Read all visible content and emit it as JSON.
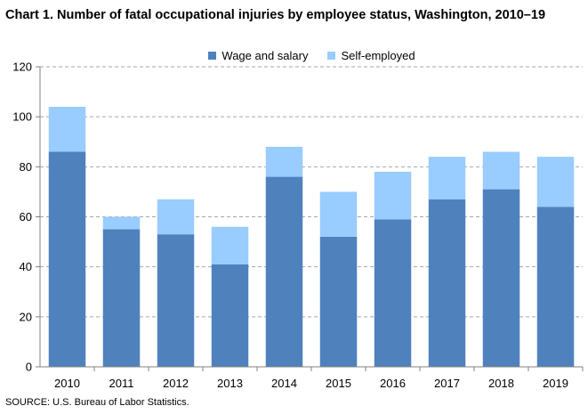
{
  "title": "Chart 1. Number of fatal occupational injuries by employee status, Washington, 2010–19",
  "source": "SOURCE: U.S. Bureau of Labor Statistics.",
  "colors": {
    "wage": "#4f81bd",
    "self": "#99ccff",
    "grid": "#a6a6a6",
    "axis": "#808080"
  },
  "chart_data": {
    "type": "bar",
    "stacked": true,
    "categories": [
      "2010",
      "2011",
      "2012",
      "2013",
      "2014",
      "2015",
      "2016",
      "2017",
      "2018",
      "2019"
    ],
    "series": [
      {
        "name": "Wage and salary",
        "values": [
          86,
          55,
          53,
          41,
          76,
          52,
          59,
          67,
          71,
          64
        ]
      },
      {
        "name": "Self-employed",
        "values": [
          18,
          5,
          14,
          15,
          12,
          18,
          19,
          17,
          15,
          20
        ]
      }
    ],
    "ylim": [
      0,
      120
    ],
    "yticks": [
      "0",
      "20",
      "40",
      "60",
      "80",
      "100",
      "120"
    ],
    "grid": true,
    "legend_position": "top"
  }
}
